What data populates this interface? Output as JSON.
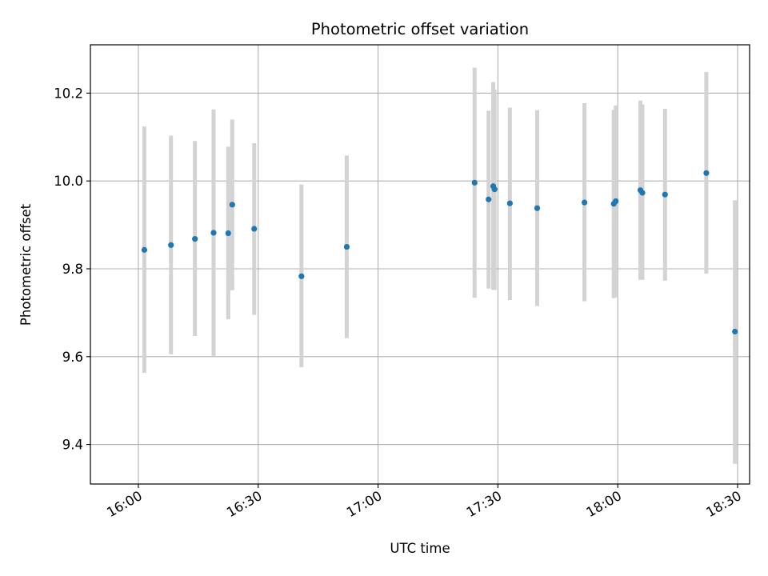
{
  "chart_data": {
    "type": "scatter",
    "title": "Photometric offset variation",
    "xlabel": "UTC time",
    "ylabel": "Photometric offset",
    "xlim": [
      "15:48",
      "18:33"
    ],
    "ylim": [
      9.31,
      10.31
    ],
    "x_ticks": [
      "16:00",
      "16:30",
      "17:00",
      "17:30",
      "18:00",
      "18:30"
    ],
    "y_ticks": [
      "9.4",
      "9.6",
      "9.8",
      "10.0",
      "10.2"
    ],
    "grid": true,
    "point_color": "#1f77b4",
    "errorbar_color": "#d3d3d3",
    "series": [
      {
        "points": [
          {
            "t": "16:01:30",
            "y": 9.843,
            "lo": 9.563,
            "hi": 10.124
          },
          {
            "t": "16:08:10",
            "y": 9.854,
            "lo": 9.605,
            "hi": 10.103
          },
          {
            "t": "16:14:10",
            "y": 9.868,
            "lo": 9.647,
            "hi": 10.091
          },
          {
            "t": "16:18:50",
            "y": 9.882,
            "lo": 9.6,
            "hi": 10.163
          },
          {
            "t": "16:22:30",
            "y": 9.881,
            "lo": 9.685,
            "hi": 10.078
          },
          {
            "t": "16:23:30",
            "y": 9.946,
            "lo": 9.751,
            "hi": 10.14
          },
          {
            "t": "16:29:00",
            "y": 9.891,
            "lo": 9.695,
            "hi": 10.086
          },
          {
            "t": "16:40:50",
            "y": 9.783,
            "lo": 9.576,
            "hi": 9.992
          },
          {
            "t": "16:52:10",
            "y": 9.85,
            "lo": 9.642,
            "hi": 10.058
          },
          {
            "t": "17:24:10",
            "y": 9.996,
            "lo": 9.734,
            "hi": 10.258
          },
          {
            "t": "17:27:40",
            "y": 9.958,
            "lo": 9.755,
            "hi": 10.16
          },
          {
            "t": "17:28:50",
            "y": 9.988,
            "lo": 9.752,
            "hi": 10.225
          },
          {
            "t": "17:29:10",
            "y": 9.981,
            "lo": 9.752,
            "hi": 10.208
          },
          {
            "t": "17:33:00",
            "y": 9.949,
            "lo": 9.729,
            "hi": 10.167
          },
          {
            "t": "17:39:50",
            "y": 9.938,
            "lo": 9.715,
            "hi": 10.161
          },
          {
            "t": "17:51:40",
            "y": 9.951,
            "lo": 9.726,
            "hi": 10.177
          },
          {
            "t": "17:59:00",
            "y": 9.948,
            "lo": 9.733,
            "hi": 10.162
          },
          {
            "t": "17:59:30",
            "y": 9.954,
            "lo": 9.735,
            "hi": 10.172
          },
          {
            "t": "18:05:40",
            "y": 9.979,
            "lo": 9.775,
            "hi": 10.183
          },
          {
            "t": "18:06:10",
            "y": 9.973,
            "lo": 9.775,
            "hi": 10.174
          },
          {
            "t": "18:11:50",
            "y": 9.969,
            "lo": 9.773,
            "hi": 10.164
          },
          {
            "t": "18:22:10",
            "y": 10.018,
            "lo": 9.789,
            "hi": 10.248
          },
          {
            "t": "18:29:20",
            "y": 9.657,
            "lo": 9.356,
            "hi": 9.956
          }
        ]
      }
    ]
  }
}
